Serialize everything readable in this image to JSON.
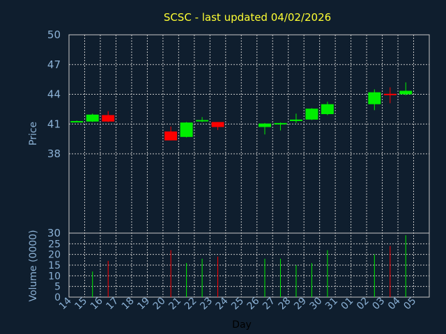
{
  "chart_data": {
    "type": "candlestick",
    "title": "SCSC - last updated 04/02/2026",
    "ylabel": "Price",
    "volume_label": "Volume (0000)",
    "xlabel": "Day",
    "ylim": [
      30,
      50
    ],
    "yticks": [
      30,
      38,
      41,
      44,
      47,
      50
    ],
    "ytick_labels": [
      "30",
      "38",
      "41",
      "44",
      "47",
      "50"
    ],
    "volume_ylim": [
      0,
      30
    ],
    "volume_ticks": [
      0,
      5,
      10,
      15,
      20,
      25
    ],
    "volume_tick_labels": [
      "0",
      "5",
      "10",
      "15",
      "20",
      "25"
    ],
    "x_labels": [
      "14",
      "15",
      "16",
      "17",
      "18",
      "19",
      "20",
      "21",
      "22",
      "23",
      "24",
      "25",
      "26",
      "27",
      "28",
      "29",
      "30",
      "31",
      "01",
      "02",
      "03",
      "04",
      "05"
    ],
    "grid": true,
    "colors": {
      "up": "#00ee00",
      "down": "#ff0000",
      "grid": "#c8c8c8",
      "axis": "#c8c8c8",
      "background": "#0f1e2e",
      "title": "#ffff33"
    },
    "candles": [
      {
        "day": "14",
        "open": 41.3,
        "high": 41.35,
        "low": 41.25,
        "close": 41.3,
        "volume": 0
      },
      {
        "day": "15",
        "open": 41.25,
        "high": 42.05,
        "low": 41.2,
        "close": 41.95,
        "volume": 12
      },
      {
        "day": "16",
        "open": 41.9,
        "high": 42.3,
        "low": 41.2,
        "close": 41.25,
        "volume": 17
      },
      {
        "day": "20",
        "open": 40.25,
        "high": 40.75,
        "low": 39.35,
        "close": 39.35,
        "volume": 22
      },
      {
        "day": "21",
        "open": 39.7,
        "high": 41.2,
        "low": 39.65,
        "close": 41.15,
        "volume": 16
      },
      {
        "day": "22",
        "open": 41.35,
        "high": 41.7,
        "low": 41.2,
        "close": 41.4,
        "volume": 18
      },
      {
        "day": "23",
        "open": 41.2,
        "high": 41.2,
        "low": 40.4,
        "close": 40.7,
        "volume": 19
      },
      {
        "day": "26",
        "open": 40.7,
        "high": 41.1,
        "low": 39.95,
        "close": 41.05,
        "volume": 18
      },
      {
        "day": "27",
        "open": 41.05,
        "high": 41.15,
        "low": 40.35,
        "close": 41.1,
        "volume": 18
      },
      {
        "day": "28",
        "open": 41.3,
        "high": 42.05,
        "low": 41.1,
        "close": 41.45,
        "volume": 15
      },
      {
        "day": "29",
        "open": 41.45,
        "high": 42.6,
        "low": 41.4,
        "close": 42.55,
        "volume": 16
      },
      {
        "day": "30",
        "open": 42.0,
        "high": 43.25,
        "low": 41.9,
        "close": 43.0,
        "volume": 22
      },
      {
        "day": "02",
        "open": 43.0,
        "high": 44.5,
        "low": 42.4,
        "close": 44.2,
        "volume": 20
      },
      {
        "day": "03",
        "open": 44.05,
        "high": 44.7,
        "low": 43.1,
        "close": 43.95,
        "volume": 24
      },
      {
        "day": "04",
        "open": 44.0,
        "high": 45.2,
        "low": 43.9,
        "close": 44.35,
        "volume": 29
      }
    ]
  }
}
